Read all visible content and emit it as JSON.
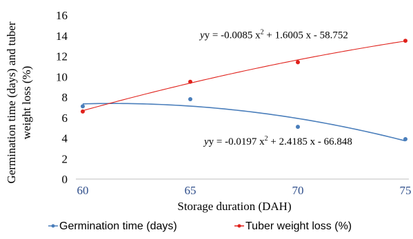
{
  "chart_data": {
    "type": "scatter",
    "title": "",
    "xlabel": "Storage duration (DAH)",
    "ylabel_lines": [
      "Germination time (days) and tuber",
      "weight loss (%)"
    ],
    "x": [
      60,
      65,
      70,
      75
    ],
    "xlim": [
      60,
      75
    ],
    "ylim": [
      0,
      16
    ],
    "yticks": [
      0,
      2,
      4,
      6,
      8,
      10,
      12,
      14,
      16
    ],
    "grid": false,
    "legend_position": "bottom",
    "series": [
      {
        "name": "Germination time (days)",
        "color": "#4a7ebb",
        "values": [
          7.1,
          7.8,
          5.1,
          3.9
        ],
        "trendline": {
          "type": "polynomial",
          "a": -0.0197,
          "b": 2.4185,
          "c": -66.848
        },
        "equation_prefix": "y = -0.0197 x",
        "equation_sup": "2",
        "equation_suffix": " + 2.4185 x - 66.848"
      },
      {
        "name": "Tuber weight loss (%)",
        "color": "#e0211b",
        "values": [
          6.6,
          9.5,
          11.4,
          13.5
        ],
        "trendline": {
          "type": "polynomial",
          "a": -0.0085,
          "b": 1.6005,
          "c": -58.752
        },
        "equation_prefix": "y = -0.0085 x",
        "equation_sup": "2",
        "equation_suffix": " + 1.6005 x - 58.752"
      }
    ]
  }
}
